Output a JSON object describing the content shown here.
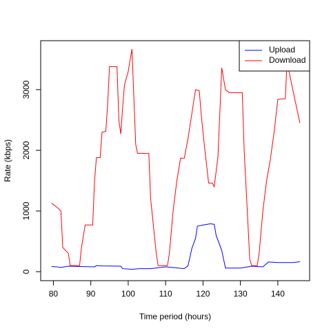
{
  "chart_data": {
    "type": "line",
    "xlabel": "Time period (hours)",
    "ylabel": "Rate (kbps)",
    "xlim": [
      76.6,
      148.5
    ],
    "xticks": [
      80,
      90,
      100,
      110,
      120,
      130,
      140
    ],
    "ylim": [
      -148,
      3807
    ],
    "yticks": [
      0,
      1000,
      2000,
      3000
    ],
    "legend": "topright",
    "series": [
      {
        "name": "Upload",
        "color": "#0000ff",
        "x": [
          79.5,
          81,
          82,
          84,
          87,
          91,
          91.5,
          93,
          98,
          98.5,
          101,
          103,
          106,
          110,
          115,
          116,
          117,
          118,
          118.5,
          120,
          122,
          123,
          123.5,
          125,
          126,
          130,
          133,
          136,
          137.5,
          140,
          144,
          145.9
        ],
        "values": [
          85,
          80,
          70,
          90,
          85,
          80,
          100,
          95,
          90,
          50,
          40,
          50,
          50,
          80,
          50,
          100,
          380,
          550,
          750,
          770,
          790,
          780,
          600,
          350,
          60,
          60,
          90,
          80,
          160,
          150,
          150,
          165
        ]
      },
      {
        "name": "Download",
        "color": "#ff0000",
        "x": [
          79.5,
          81,
          82,
          82.5,
          84,
          84.5,
          87,
          87.5,
          88.5,
          90.5,
          91,
          91.5,
          92.5,
          93,
          94,
          94.5,
          95,
          97,
          97.5,
          98,
          98.5,
          99,
          100,
          101,
          102,
          102.5,
          105.5,
          106,
          107.5,
          108,
          110.5,
          111,
          112,
          113,
          114,
          115,
          116,
          117,
          118,
          119,
          119.5,
          120.5,
          121.5,
          122.5,
          123,
          124,
          125,
          126,
          127,
          130.5,
          131,
          132.5,
          133,
          134.5,
          135,
          136,
          137,
          138,
          139,
          140,
          142,
          142.5,
          143,
          144,
          145.9
        ],
        "values": [
          1130,
          1060,
          1000,
          400,
          300,
          100,
          100,
          400,
          770,
          770,
          1500,
          1880,
          1880,
          2300,
          2310,
          2750,
          3380,
          3380,
          2500,
          2270,
          2700,
          3080,
          3300,
          3670,
          2100,
          1950,
          1950,
          1200,
          300,
          100,
          100,
          300,
          1000,
          1500,
          1870,
          1870,
          2200,
          2600,
          3000,
          2980,
          2600,
          2000,
          1460,
          1460,
          1400,
          1900,
          3360,
          3000,
          2950,
          2950,
          2000,
          200,
          100,
          100,
          300,
          1000,
          1500,
          1850,
          2300,
          2840,
          2850,
          3500,
          3300,
          3000,
          2450
        ]
      }
    ]
  }
}
